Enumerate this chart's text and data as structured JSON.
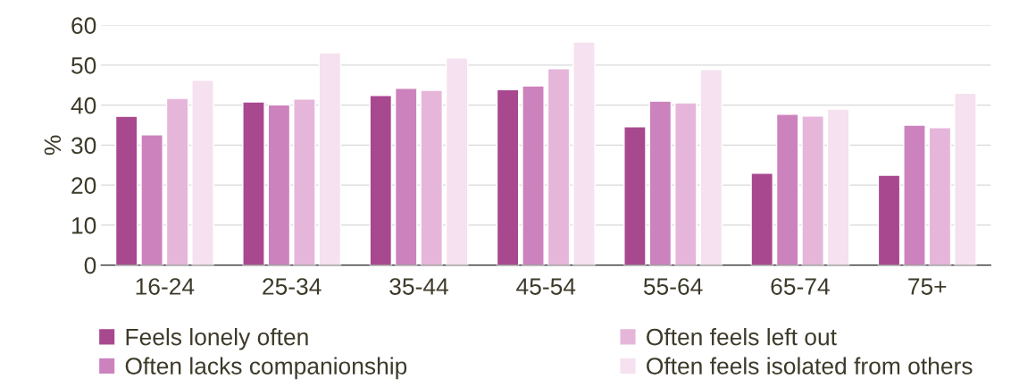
{
  "chart_data": {
    "type": "bar",
    "ylabel": "%",
    "categories": [
      "16-24",
      "25-34",
      "35-44",
      "45-54",
      "55-64",
      "65-74",
      "75+"
    ],
    "series": [
      {
        "name": "Feels lonely often",
        "color": "#a8488f",
        "values": [
          37.2,
          40.8,
          42.4,
          43.9,
          34.6,
          23.0,
          22.5
        ]
      },
      {
        "name": "Often lacks companionship",
        "color": "#cc82bd",
        "values": [
          32.6,
          40.1,
          44.2,
          44.8,
          41.0,
          37.7,
          35.0
        ]
      },
      {
        "name": "Often feels left out",
        "color": "#e6b6da",
        "values": [
          41.7,
          41.5,
          43.7,
          49.1,
          40.6,
          37.3,
          34.4
        ]
      },
      {
        "name": "Often feels isolated from others",
        "color": "#f5e1ef",
        "values": [
          46.2,
          53.1,
          51.8,
          55.8,
          48.9,
          39.0,
          43.0
        ]
      }
    ],
    "ylim": [
      0,
      60
    ],
    "yticks": [
      0,
      10,
      20,
      30,
      40,
      50,
      60
    ],
    "grid": "y",
    "legend": "bottom"
  }
}
